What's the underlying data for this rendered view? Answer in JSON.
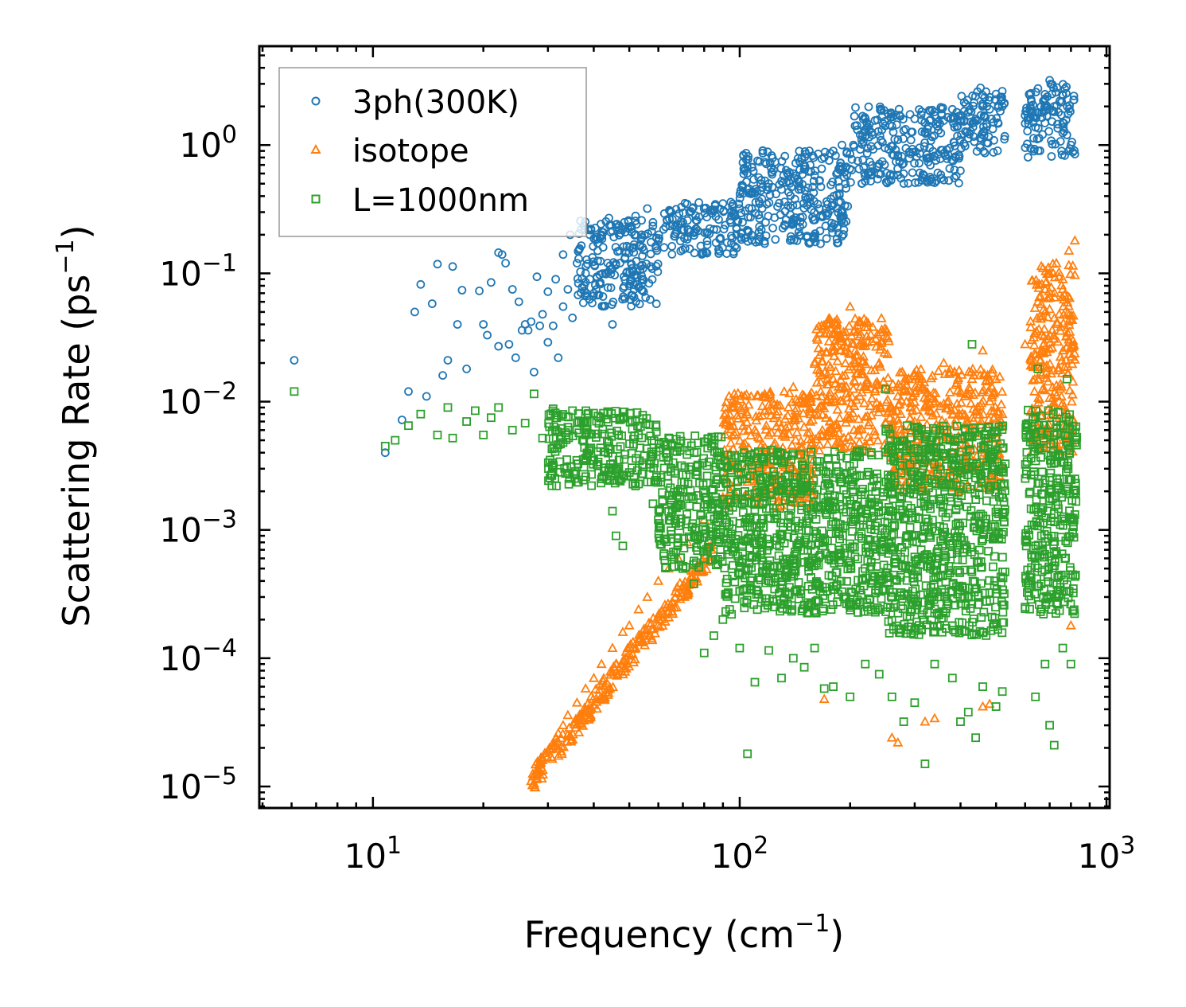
{
  "chart_data": {
    "type": "scatter",
    "title": "",
    "xlabel": "Frequency (cm",
    "xlabel_sup": "−1",
    "xlabel_end": ")",
    "ylabel": "Scattering Rate (ps",
    "ylabel_sup": "−1",
    "ylabel_end": ")",
    "xscale": "log",
    "yscale": "log",
    "xlim": [
      4.9,
      1020
    ],
    "ylim": [
      6.8e-06,
      5.9
    ],
    "legend_position": "top-left",
    "x_ticks": [
      {
        "value": 10,
        "base": "10",
        "exp": "1"
      },
      {
        "value": 100,
        "base": "10",
        "exp": "2"
      },
      {
        "value": 1000,
        "base": "10",
        "exp": "3"
      }
    ],
    "y_ticks": [
      {
        "value": 1,
        "base": "10",
        "exp": "0"
      },
      {
        "value": 0.1,
        "base": "10",
        "exp": "−1"
      },
      {
        "value": 0.01,
        "base": "10",
        "exp": "−2"
      },
      {
        "value": 0.001,
        "base": "10",
        "exp": "−3"
      },
      {
        "value": 0.0001,
        "base": "10",
        "exp": "−4"
      },
      {
        "value": 1e-05,
        "base": "10",
        "exp": "−5"
      }
    ],
    "series": [
      {
        "name": "3ph(300K)",
        "marker": "circle",
        "color": "#1f77b4",
        "points": [
          [
            6.1,
            0.021
          ],
          [
            10.8,
            0.004
          ],
          [
            12.0,
            0.0072
          ],
          [
            12.5,
            0.012
          ],
          [
            13.0,
            0.05
          ],
          [
            13.5,
            0.082
          ],
          [
            14.0,
            0.011
          ],
          [
            14.5,
            0.058
          ],
          [
            15.0,
            0.118
          ],
          [
            15.5,
            0.016
          ],
          [
            16.0,
            0.021
          ],
          [
            16.5,
            0.113
          ],
          [
            17.0,
            0.04
          ],
          [
            17.5,
            0.074
          ],
          [
            18.0,
            0.018
          ],
          [
            19.5,
            0.073
          ],
          [
            20.0,
            0.04
          ],
          [
            20.5,
            0.033
          ],
          [
            21.0,
            0.085
          ],
          [
            22.0,
            0.027
          ],
          [
            22.0,
            0.145
          ],
          [
            22.5,
            0.14
          ],
          [
            23.0,
            0.12
          ],
          [
            23.5,
            0.028
          ],
          [
            24.0,
            0.075
          ],
          [
            24.5,
            0.022
          ],
          [
            25.0,
            0.06
          ],
          [
            25.5,
            0.036
          ],
          [
            26.0,
            0.04
          ],
          [
            26.5,
            0.036
          ],
          [
            27.0,
            0.042
          ],
          [
            27.5,
            0.017
          ],
          [
            28.0,
            0.094
          ],
          [
            28.5,
            0.039
          ],
          [
            29.0,
            0.048
          ],
          [
            30.0,
            0.029
          ],
          [
            30.0,
            0.072
          ],
          [
            31.0,
            0.039
          ],
          [
            31.5,
            0.09
          ],
          [
            32.0,
            0.022
          ],
          [
            33.0,
            0.055
          ],
          [
            33.0,
            0.14
          ],
          [
            34.0,
            0.075
          ],
          [
            34.5,
            0.2
          ],
          [
            35.0,
            0.045
          ],
          [
            36.0,
            0.12
          ],
          [
            37.0,
            0.22
          ],
          [
            38.0,
            0.1
          ],
          [
            39.0,
            0.2
          ],
          [
            40.0,
            0.07
          ],
          [
            41.0,
            0.15
          ],
          [
            42.0,
            0.2
          ],
          [
            43.0,
            0.1
          ],
          [
            44.0,
            0.27
          ],
          [
            45.0,
            0.04
          ],
          [
            46.0,
            0.24
          ],
          [
            47.0,
            0.15
          ],
          [
            48.0,
            0.22
          ],
          [
            50.0,
            0.08
          ],
          [
            52.0,
            0.28
          ],
          [
            54.0,
            0.2
          ],
          [
            56.0,
            0.32
          ],
          [
            58.0,
            0.25
          ],
          [
            60.0,
            0.18
          ],
          [
            62.0,
            0.22
          ],
          [
            65.0,
            0.3
          ],
          [
            68.0,
            0.24
          ],
          [
            70.0,
            0.25
          ],
          [
            73.0,
            0.3
          ],
          [
            76.0,
            0.26
          ],
          [
            80.0,
            0.32
          ],
          [
            85.0,
            0.22
          ],
          [
            90.0,
            0.35
          ],
          [
            95.0,
            0.3
          ],
          [
            100.0,
            0.32
          ],
          [
            105.0,
            0.45
          ],
          [
            110.0,
            0.42
          ],
          [
            115.0,
            0.38
          ],
          [
            120.0,
            0.5
          ],
          [
            130.0,
            0.45
          ],
          [
            140.0,
            0.6
          ],
          [
            150.0,
            0.7
          ],
          [
            160.0,
            0.58
          ],
          [
            170.0,
            0.8
          ],
          [
            180.0,
            0.9
          ],
          [
            190.0,
            1.0
          ],
          [
            200.0,
            0.85
          ],
          [
            215.0,
            1.1
          ],
          [
            230.0,
            1.2
          ],
          [
            245.0,
            1.05
          ],
          [
            260.0,
            1.4
          ],
          [
            280.0,
            1.3
          ],
          [
            300.0,
            1.6
          ],
          [
            320.0,
            1.5
          ],
          [
            340.0,
            1.7
          ],
          [
            360.0,
            1.55
          ],
          [
            380.0,
            1.9
          ],
          [
            400.0,
            1.7
          ],
          [
            420.0,
            1.8
          ],
          [
            440.0,
            1.6
          ],
          [
            460.0,
            2.1
          ],
          [
            480.0,
            1.9
          ],
          [
            500.0,
            2.5
          ],
          [
            520.0,
            2.0
          ],
          [
            600.0,
            1.7
          ],
          [
            620.0,
            2.0
          ],
          [
            650.0,
            1.8
          ],
          [
            680.0,
            2.3
          ],
          [
            700.0,
            3.2
          ],
          [
            710.0,
            2.5
          ],
          [
            720.0,
            2.0
          ],
          [
            740.0,
            1.8
          ],
          [
            760.0,
            1.5
          ],
          [
            780.0,
            1.2
          ],
          [
            800.0,
            1.0
          ],
          [
            820.0,
            0.85
          ]
        ],
        "bands": [
          {
            "x0": 36,
            "x1": 60,
            "y_lo": 0.055,
            "y_hi": 0.26
          },
          {
            "x0": 60,
            "x1": 100,
            "y_lo": 0.14,
            "y_hi": 0.36
          },
          {
            "x0": 100,
            "x1": 200,
            "y_lo": 0.17,
            "y_hi": 0.95
          },
          {
            "x0": 200,
            "x1": 400,
            "y_lo": 0.5,
            "y_hi": 2.0
          },
          {
            "x0": 400,
            "x1": 530,
            "y_lo": 0.85,
            "y_hi": 2.8
          },
          {
            "x0": 600,
            "x1": 820,
            "y_lo": 0.8,
            "y_hi": 3.0
          }
        ]
      },
      {
        "name": "isotope",
        "marker": "triangle",
        "color": "#ff7f0e",
        "points": [
          [
            27.0,
            1.1e-05
          ],
          [
            28.0,
            1.3e-05
          ],
          [
            29.0,
            1.6e-05
          ],
          [
            30.0,
            1.9e-05
          ],
          [
            31.0,
            2.2e-05
          ],
          [
            32.0,
            2.6e-05
          ],
          [
            33.0,
            3e-05
          ],
          [
            34.0,
            3.6e-05
          ],
          [
            36.0,
            4.5e-05
          ],
          [
            38.0,
            5.8e-05
          ],
          [
            40.0,
            7e-05
          ],
          [
            42.0,
            9e-05
          ],
          [
            45.0,
            0.00012
          ],
          [
            48.0,
            0.00016
          ],
          [
            50.0,
            0.00018
          ],
          [
            53.0,
            0.00024
          ],
          [
            56.0,
            0.0003
          ],
          [
            60.0,
            0.0004
          ],
          [
            64.0,
            0.0005
          ],
          [
            68.0,
            0.0006
          ],
          [
            72.0,
            0.0008
          ],
          [
            80.0,
            0.0012
          ],
          [
            90.0,
            0.0018
          ],
          [
            100.0,
            0.003
          ],
          [
            110.0,
            0.006
          ],
          [
            120.0,
            0.0085
          ],
          [
            140.0,
            0.013
          ],
          [
            150.0,
            0.011
          ],
          [
            160.0,
            0.008
          ],
          [
            180.0,
            0.015
          ],
          [
            200.0,
            0.055
          ],
          [
            215.0,
            0.03
          ],
          [
            240.0,
            0.02
          ],
          [
            260.0,
            0.009
          ],
          [
            280.0,
            0.012
          ],
          [
            300.0,
            0.007
          ],
          [
            330.0,
            0.011
          ],
          [
            360.0,
            0.02
          ],
          [
            400.0,
            0.012
          ],
          [
            430.0,
            0.015
          ],
          [
            460.0,
            0.025
          ],
          [
            500.0,
            0.015
          ],
          [
            520.0,
            0.008
          ],
          [
            600.0,
            0.028
          ],
          [
            650.0,
            0.06
          ],
          [
            700.0,
            0.1
          ],
          [
            730.0,
            0.12
          ],
          [
            760.0,
            0.09
          ],
          [
            790.0,
            0.15
          ],
          [
            820.0,
            0.18
          ],
          [
            170.0,
            4.8e-05
          ],
          [
            260.0,
            2.4e-05
          ],
          [
            270.0,
            2.2e-05
          ],
          [
            320.0,
            3.2e-05
          ],
          [
            340.0,
            3.4e-05
          ],
          [
            460.0,
            4.2e-05
          ],
          [
            480.0,
            4.4e-05
          ],
          [
            800.0,
            0.00018
          ]
        ],
        "bands": [
          {
            "x0": 90,
            "x1": 160,
            "y_lo": 0.0015,
            "y_hi": 0.012
          },
          {
            "x0": 160,
            "x1": 260,
            "y_lo": 0.004,
            "y_hi": 0.045
          },
          {
            "x0": 260,
            "x1": 520,
            "y_lo": 0.002,
            "y_hi": 0.018
          },
          {
            "x0": 620,
            "x1": 820,
            "y_lo": 0.004,
            "y_hi": 0.12
          }
        ]
      },
      {
        "name": "L=1000nm",
        "marker": "square",
        "color": "#2ca02c",
        "points": [
          [
            6.1,
            0.012
          ],
          [
            10.8,
            0.0045
          ],
          [
            11.5,
            0.005
          ],
          [
            12.5,
            0.0065
          ],
          [
            13.5,
            0.008
          ],
          [
            15.0,
            0.0055
          ],
          [
            16.0,
            0.009
          ],
          [
            16.5,
            0.0052
          ],
          [
            18.0,
            0.007
          ],
          [
            19.0,
            0.0085
          ],
          [
            20.0,
            0.0055
          ],
          [
            21.0,
            0.0075
          ],
          [
            22.0,
            0.009
          ],
          [
            24.0,
            0.006
          ],
          [
            26.0,
            0.0068
          ],
          [
            27.5,
            0.0115
          ],
          [
            29.0,
            0.0052
          ],
          [
            31.0,
            0.0088
          ],
          [
            33.0,
            0.0048
          ],
          [
            35.0,
            0.0085
          ],
          [
            37.0,
            0.007
          ],
          [
            38.0,
            0.0055
          ],
          [
            40.0,
            0.0035
          ],
          [
            42.0,
            0.0025
          ],
          [
            44.0,
            0.0048
          ],
          [
            45.0,
            0.0014
          ],
          [
            46.0,
            0.0009
          ],
          [
            48.0,
            0.00075
          ],
          [
            50.0,
            0.0028
          ],
          [
            52.0,
            0.0022
          ],
          [
            55.0,
            0.0038
          ],
          [
            58.0,
            0.0016
          ],
          [
            60.0,
            0.0012
          ],
          [
            65.0,
            0.00085
          ],
          [
            70.0,
            0.0005
          ],
          [
            75.0,
            0.00038
          ],
          [
            80.0,
            0.00011
          ],
          [
            85.0,
            0.00015
          ],
          [
            90.0,
            0.0002
          ],
          [
            95.0,
            0.00022
          ],
          [
            100.0,
            0.00012
          ],
          [
            105.0,
            1.8e-05
          ],
          [
            110.0,
            6.5e-05
          ],
          [
            120.0,
            0.000115
          ],
          [
            130.0,
            7e-05
          ],
          [
            140.0,
            0.0001
          ],
          [
            150.0,
            8.5e-05
          ],
          [
            160.0,
            0.00012
          ],
          [
            170.0,
            5.8e-05
          ],
          [
            180.0,
            6e-05
          ],
          [
            200.0,
            5e-05
          ],
          [
            220.0,
            9e-05
          ],
          [
            240.0,
            7.5e-05
          ],
          [
            260.0,
            5e-05
          ],
          [
            280.0,
            3.2e-05
          ],
          [
            300.0,
            4.5e-05
          ],
          [
            320.0,
            1.5e-05
          ],
          [
            340.0,
            9e-05
          ],
          [
            380.0,
            7e-05
          ],
          [
            400.0,
            3.2e-05
          ],
          [
            420.0,
            3.8e-05
          ],
          [
            440.0,
            2.4e-05
          ],
          [
            460.0,
            6e-05
          ],
          [
            500.0,
            4.2e-05
          ],
          [
            520.0,
            5.5e-05
          ],
          [
            600.0,
            0.00025
          ],
          [
            640.0,
            5e-05
          ],
          [
            680.0,
            9e-05
          ],
          [
            700.0,
            3e-05
          ],
          [
            720.0,
            2.1e-05
          ],
          [
            760.0,
            0.00012
          ],
          [
            800.0,
            9e-05
          ],
          [
            820.0,
            0.0025
          ],
          [
            430.0,
            0.028
          ],
          [
            250.0,
            0.0125
          ],
          [
            650.0,
            0.018
          ],
          [
            780.0,
            0.015
          ]
        ],
        "bands": [
          {
            "x0": 30,
            "x1": 60,
            "y_lo": 0.0022,
            "y_hi": 0.0085
          },
          {
            "x0": 60,
            "x1": 90,
            "y_lo": 0.0005,
            "y_hi": 0.0055
          },
          {
            "x0": 90,
            "x1": 250,
            "y_lo": 0.00022,
            "y_hi": 0.0042
          },
          {
            "x0": 250,
            "x1": 530,
            "y_lo": 0.00015,
            "y_hi": 0.0065
          },
          {
            "x0": 600,
            "x1": 830,
            "y_lo": 0.00022,
            "y_hi": 0.009
          }
        ]
      }
    ]
  }
}
